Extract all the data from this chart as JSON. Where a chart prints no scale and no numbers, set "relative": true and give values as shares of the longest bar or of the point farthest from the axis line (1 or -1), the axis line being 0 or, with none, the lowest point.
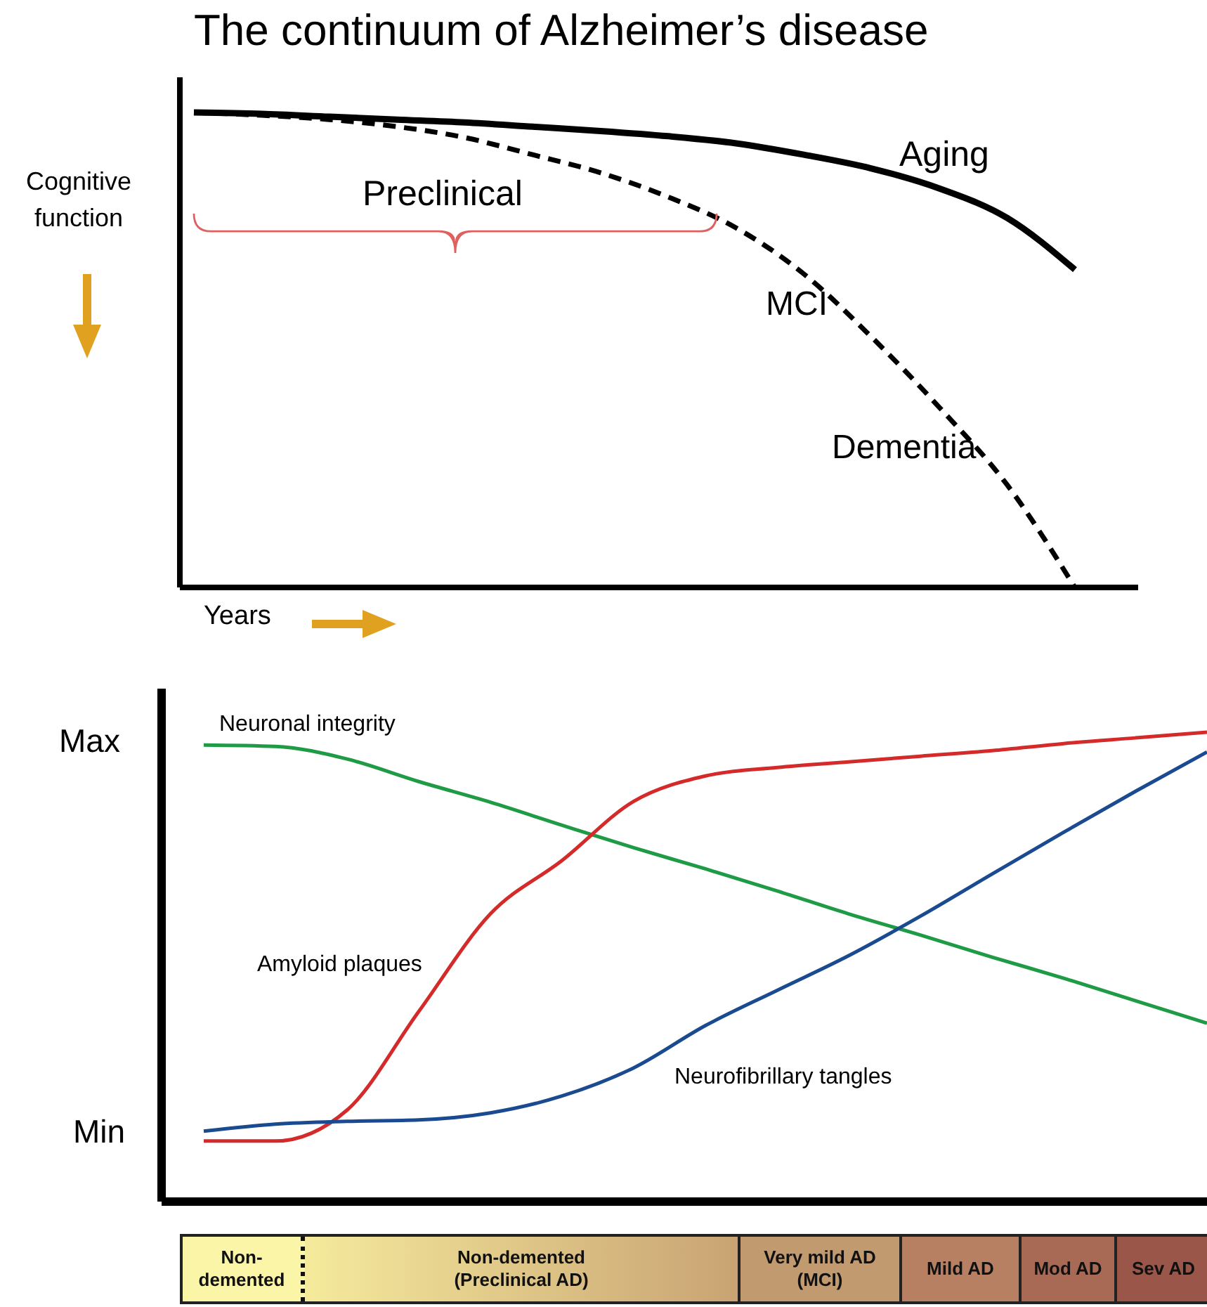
{
  "chart_data": [
    {
      "type": "line",
      "title": "The continuum of Alzheimer’s disease",
      "ylabel": "Cognitive function",
      "xlabel": "Years",
      "relative": true,
      "categories": [
        null,
        null,
        null,
        null,
        null,
        null,
        null,
        null,
        null,
        null,
        null,
        null,
        null,
        null
      ],
      "series": [
        {
          "name": "Aging",
          "color": "#000000",
          "line_style": "solid",
          "values": [
            1.0,
            0.997,
            0.991,
            0.985,
            0.979,
            0.97,
            0.961,
            0.95,
            0.935,
            0.911,
            0.882,
            0.84,
            0.778,
            0.669
          ]
        },
        {
          "color": "#000000",
          "line_style": "dashed",
          "values": [
            1.0,
            0.994,
            0.985,
            0.97,
            0.947,
            0.911,
            0.873,
            0.822,
            0.757,
            0.66,
            0.527,
            0.379,
            0.216,
            0.0
          ]
        }
      ],
      "annotations": [
        "Preclinical",
        "MCI",
        "Dementia"
      ]
    },
    {
      "type": "line",
      "relative": true,
      "categories": [
        null,
        null,
        null,
        null,
        null,
        null,
        null,
        null,
        null,
        null,
        null,
        null,
        null,
        null,
        null
      ],
      "series": [
        {
          "name": "Neuronal integrity",
          "color": "#1f9a45",
          "values": [
            0.973,
            0.97,
            0.943,
            0.895,
            0.851,
            0.802,
            0.754,
            0.709,
            0.662,
            0.613,
            0.568,
            0.521,
            0.476,
            0.428,
            0.38
          ]
        },
        {
          "name": "Amyloid plaques",
          "color": "#d42a2a",
          "values": [
            0.129,
            0.129,
            0.195,
            0.405,
            0.613,
            0.727,
            0.853,
            0.907,
            0.925,
            0.937,
            0.949,
            0.961,
            0.976,
            0.988,
            1.0
          ]
        },
        {
          "name": "Neurofibrillary tangles",
          "color": "#1a4a90",
          "values": [
            0.15,
            0.165,
            0.171,
            0.174,
            0.189,
            0.225,
            0.285,
            0.375,
            0.45,
            0.524,
            0.608,
            0.698,
            0.787,
            0.874,
            0.958
          ]
        }
      ],
      "annotations": [
        "Max",
        "Min",
        "Non-demented",
        "Non-demented (Preclinical AD)",
        "Very mild AD (MCI)",
        "Mild AD",
        "Mod AD",
        "Sev AD"
      ]
    }
  ]
}
